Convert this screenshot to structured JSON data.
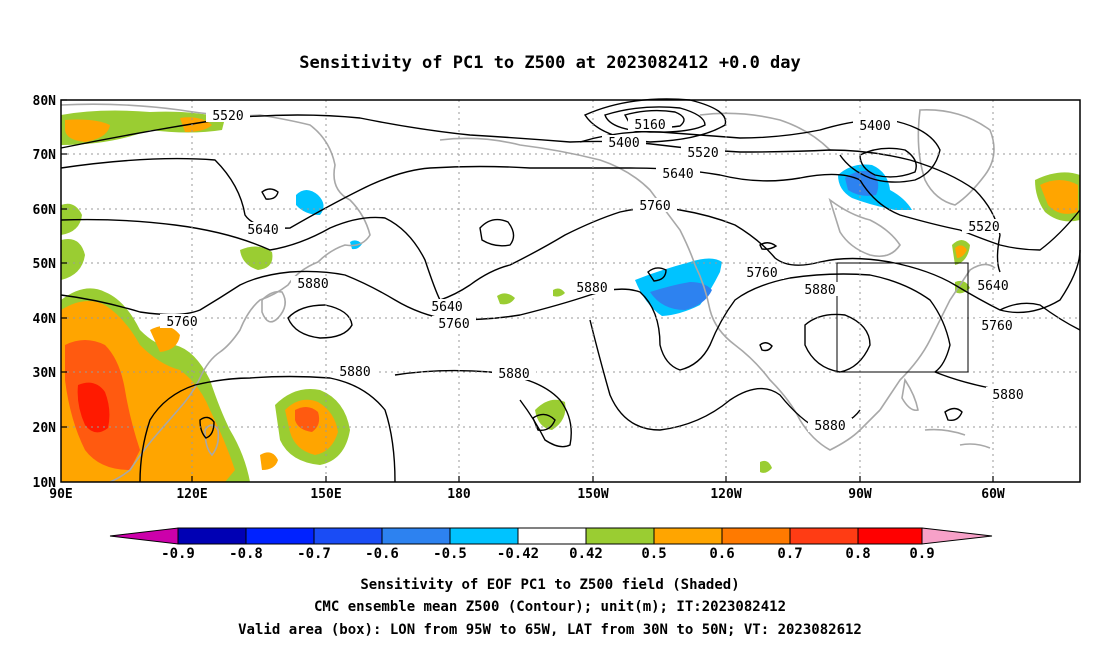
{
  "title": "Sensitivity of PC1 to Z500 at 2023082412 +0.0 day",
  "axes": {
    "lat_labels": [
      "80N",
      "70N",
      "60N",
      "50N",
      "40N",
      "30N",
      "20N",
      "10N"
    ],
    "lon_labels": [
      "90E",
      "120E",
      "150E",
      "180",
      "150W",
      "120W",
      "90W",
      "60W"
    ]
  },
  "contour_labels": [
    {
      "text": "5520"
    },
    {
      "text": "5160"
    },
    {
      "text": "5400"
    },
    {
      "text": "5520"
    },
    {
      "text": "5400"
    },
    {
      "text": "5640"
    },
    {
      "text": "5640"
    },
    {
      "text": "5760"
    },
    {
      "text": "5520"
    },
    {
      "text": "5880"
    },
    {
      "text": "5760"
    },
    {
      "text": "5640"
    },
    {
      "text": "5760"
    },
    {
      "text": "5880"
    },
    {
      "text": "5880"
    },
    {
      "text": "5640"
    },
    {
      "text": "5760"
    },
    {
      "text": "5760"
    },
    {
      "text": "5880"
    },
    {
      "text": "5880"
    },
    {
      "text": "5880"
    },
    {
      "text": "5880"
    }
  ],
  "valid_box": {
    "lon": [
      "95W",
      "65W"
    ],
    "lat": [
      "30N",
      "50N"
    ]
  },
  "colorbar": {
    "labels": [
      "-0.9",
      "-0.8",
      "-0.7",
      "-0.6",
      "-0.5",
      "-0.42",
      "0.42",
      "0.5",
      "0.6",
      "0.7",
      "0.8",
      "0.9"
    ],
    "colors": [
      "#cc00aa",
      "#0000b4",
      "#0022ff",
      "#1a4cf5",
      "#2d82f0",
      "#00c3ff",
      "#ffffff",
      "#9acd32",
      "#ffa500",
      "#ff7a00",
      "#ff3c14",
      "#ff0000",
      "#f7a1c8"
    ]
  },
  "colors": {
    "positive_light": "#9acd32",
    "positive_mid": "#ffa500",
    "positive_high": "#ff5a10",
    "positive_max": "#ff1a00",
    "negative_light": "#00c3ff",
    "negative_mid": "#2d82f0",
    "coast": "#a8a8a8"
  },
  "footer": {
    "line1": "Sensitivity of EOF PC1 to Z500 field (Shaded)",
    "line2": "CMC ensemble mean Z500 (Contour); unit(m); IT:2023082412",
    "line3": "Valid area (box): LON from 95W to 65W, LAT from 30N to 50N; VT: 2023082612"
  }
}
